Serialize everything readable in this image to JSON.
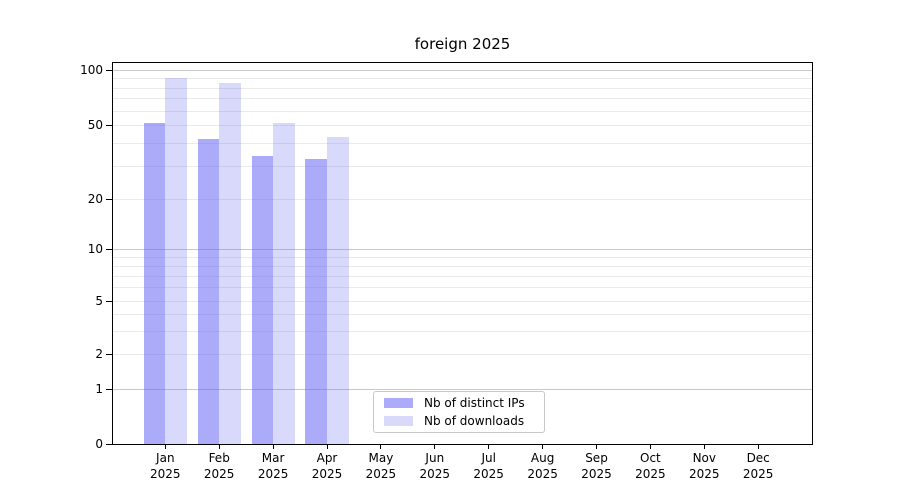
{
  "chart_data": {
    "type": "bar",
    "title": "foreign 2025",
    "categories": [
      {
        "month": "Jan",
        "year": "2025"
      },
      {
        "month": "Feb",
        "year": "2025"
      },
      {
        "month": "Mar",
        "year": "2025"
      },
      {
        "month": "Apr",
        "year": "2025"
      },
      {
        "month": "May",
        "year": "2025"
      },
      {
        "month": "Jun",
        "year": "2025"
      },
      {
        "month": "Jul",
        "year": "2025"
      },
      {
        "month": "Aug",
        "year": "2025"
      },
      {
        "month": "Sep",
        "year": "2025"
      },
      {
        "month": "Oct",
        "year": "2025"
      },
      {
        "month": "Nov",
        "year": "2025"
      },
      {
        "month": "Dec",
        "year": "2025"
      }
    ],
    "series": [
      {
        "name": "Nb of distinct IPs",
        "color": "rgba(102,102,245,0.55)",
        "values": [
          51,
          42,
          34,
          33,
          0,
          0,
          0,
          0,
          0,
          0,
          0,
          0
        ]
      },
      {
        "name": "Nb of downloads",
        "color": "rgba(102,102,245,0.25)",
        "values": [
          90,
          85,
          51,
          43,
          0,
          0,
          0,
          0,
          0,
          0,
          0,
          0
        ]
      }
    ],
    "yscale": "log-like with 0 baseline",
    "ylim": [
      0,
      115
    ],
    "yticks": [
      100,
      50,
      20,
      10,
      5,
      2,
      1,
      0
    ],
    "decade_gridlines": [
      100,
      10,
      1
    ],
    "minor_gridlines": [
      90,
      80,
      70,
      60,
      50,
      40,
      30,
      20,
      9,
      8,
      7,
      6,
      5,
      4,
      3,
      2
    ],
    "grid": "on",
    "legend": {
      "position": "lower center inside plot"
    },
    "colors": {
      "bar_distinct_ips": "#a9a9f9",
      "bar_downloads": "#d9d9fc",
      "major_grid": "#c9c9c9",
      "minor_grid": "#eaeaea",
      "spine": "#000000",
      "text": "#000000"
    }
  }
}
